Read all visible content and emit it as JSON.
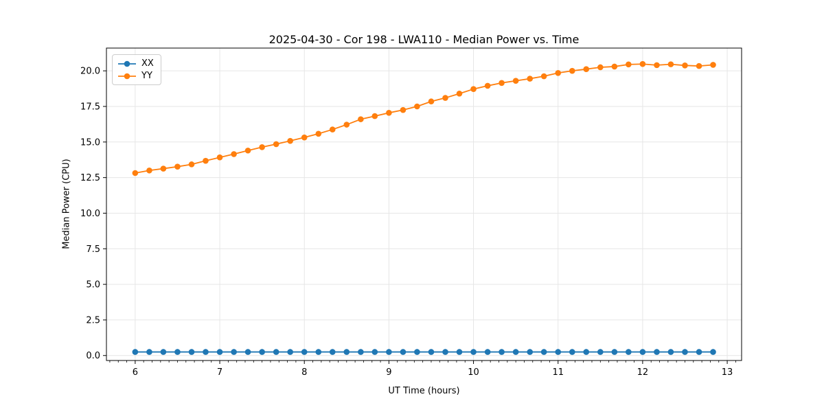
{
  "chart_data": {
    "type": "line",
    "title": "2025-04-30 - Cor 198 - LWA110 - Median Power vs. Time",
    "xlabel": "UT Time (hours)",
    "ylabel": "Median Power (CPU)",
    "xlim": [
      5.66,
      13.17
    ],
    "ylim": [
      -0.35,
      21.6
    ],
    "xticks": [
      6,
      7,
      8,
      9,
      10,
      11,
      12,
      13
    ],
    "xtick_labels": [
      "6",
      "7",
      "8",
      "9",
      "10",
      "11",
      "12",
      "13"
    ],
    "yticks": [
      0.0,
      2.5,
      5.0,
      7.5,
      10.0,
      12.5,
      15.0,
      17.5,
      20.0
    ],
    "ytick_labels": [
      "0.0",
      "2.5",
      "5.0",
      "7.5",
      "10.0",
      "12.5",
      "15.0",
      "17.5",
      "20.0"
    ],
    "minor_tick_step_x": 0.1,
    "grid": true,
    "grid_color": "#e6e6e6",
    "legend_position": "upper-left",
    "x": [
      6.0,
      6.167,
      6.333,
      6.5,
      6.667,
      6.833,
      7.0,
      7.167,
      7.333,
      7.5,
      7.667,
      7.833,
      8.0,
      8.167,
      8.333,
      8.5,
      8.667,
      8.833,
      9.0,
      9.167,
      9.333,
      9.5,
      9.667,
      9.833,
      10.0,
      10.167,
      10.333,
      10.5,
      10.667,
      10.833,
      11.0,
      11.167,
      11.333,
      11.5,
      11.667,
      11.833,
      12.0,
      12.167,
      12.333,
      12.5,
      12.667,
      12.833
    ],
    "series": [
      {
        "name": "XX",
        "color": "#1f77b4",
        "values": [
          0.25,
          0.25,
          0.25,
          0.25,
          0.25,
          0.25,
          0.25,
          0.25,
          0.25,
          0.25,
          0.25,
          0.25,
          0.25,
          0.25,
          0.25,
          0.25,
          0.25,
          0.25,
          0.25,
          0.25,
          0.25,
          0.25,
          0.25,
          0.25,
          0.25,
          0.25,
          0.25,
          0.25,
          0.25,
          0.25,
          0.25,
          0.25,
          0.25,
          0.25,
          0.25,
          0.25,
          0.25,
          0.25,
          0.25,
          0.25,
          0.25,
          0.25
        ]
      },
      {
        "name": "YY",
        "color": "#ff7f0e",
        "values": [
          12.82,
          13.0,
          13.13,
          13.27,
          13.43,
          13.68,
          13.92,
          14.15,
          14.4,
          14.64,
          14.85,
          15.08,
          15.32,
          15.58,
          15.88,
          16.22,
          16.6,
          16.82,
          17.05,
          17.25,
          17.5,
          17.85,
          18.1,
          18.4,
          18.72,
          18.95,
          19.15,
          19.3,
          19.45,
          19.62,
          19.85,
          20.0,
          20.12,
          20.25,
          20.3,
          20.45,
          20.48,
          20.4,
          20.46,
          20.38,
          20.34,
          20.42
        ]
      }
    ]
  }
}
